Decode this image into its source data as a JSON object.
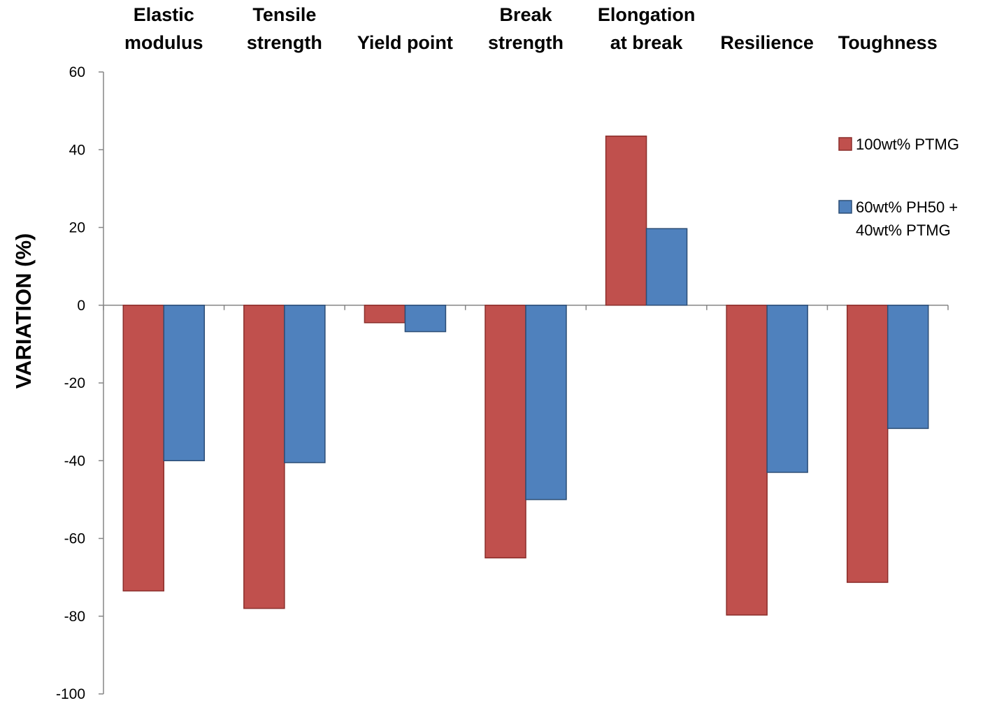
{
  "chart_data": {
    "type": "bar",
    "categories": [
      [
        "Elastic",
        "modulus"
      ],
      [
        "Tensile",
        "strength"
      ],
      [
        "Yield point"
      ],
      [
        "Break",
        "strength"
      ],
      [
        "Elongation",
        "at break"
      ],
      [
        "Resilience"
      ],
      [
        "Toughness"
      ]
    ],
    "series": [
      {
        "name": "100wt% PTMG",
        "color": "#c0504d",
        "border": "#8b2e2b",
        "values": [
          -73.5,
          -78,
          -4.5,
          -65,
          43.5,
          -79.7,
          -71.3
        ]
      },
      {
        "name_lines": [
          "60wt% PH50 +",
          "40wt% PTMG"
        ],
        "color": "#4f81bd",
        "border": "#2c4d75",
        "values": [
          -40,
          -40.5,
          -6.8,
          -50,
          19.7,
          -43,
          -31.7
        ]
      }
    ],
    "ylabel": "VARIATION (%)",
    "ylim": [
      -100,
      60
    ],
    "yticks": [
      60,
      40,
      20,
      0,
      -20,
      -40,
      -60,
      -80,
      -100
    ],
    "legend_position": "right",
    "grid": false
  }
}
